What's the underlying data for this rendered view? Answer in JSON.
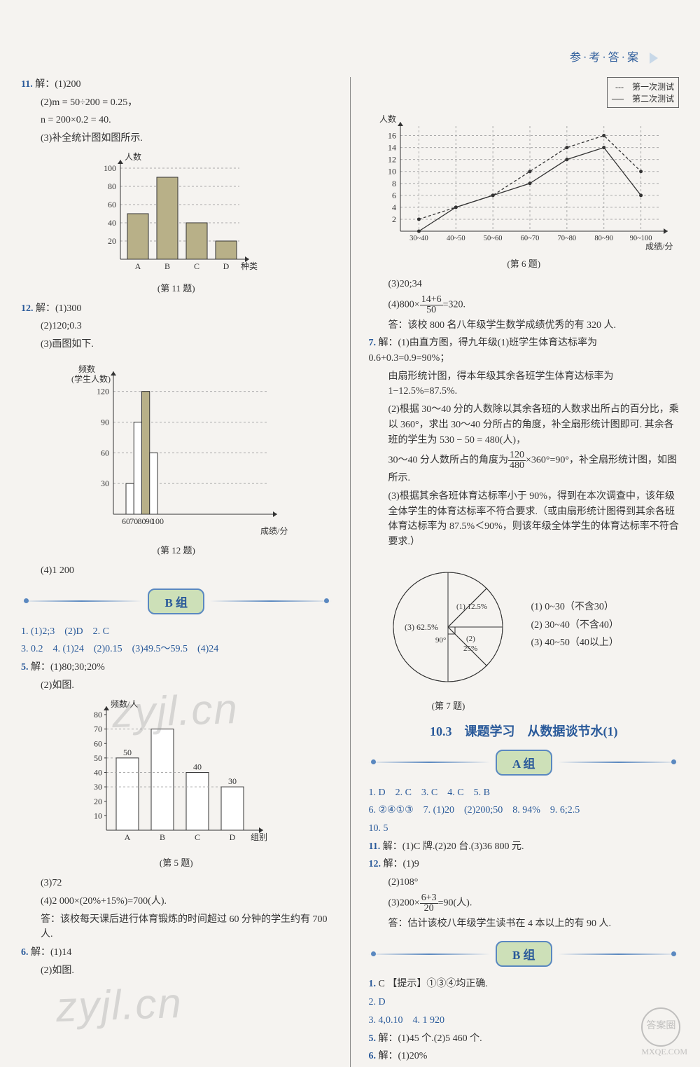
{
  "header": {
    "title": "参·考·答·案"
  },
  "left": {
    "q11": {
      "num": "11.",
      "line1": "解：(1)200",
      "line2": "(2)m = 50÷200 = 0.25，",
      "line3": "n = 200×0.2 = 40.",
      "line4": "(3)补全统计图如图所示.",
      "chart": {
        "ylabel": "人数",
        "xlabel": "种类",
        "categories": [
          "A",
          "B",
          "C",
          "D"
        ],
        "values": [
          50,
          90,
          40,
          20
        ],
        "yticks": [
          20,
          40,
          60,
          80,
          100
        ],
        "ylim": [
          0,
          100
        ],
        "bar_color": "#b8b088",
        "grid_color": "#aaa"
      },
      "caption": "(第 11 题)"
    },
    "q12": {
      "num": "12.",
      "line1": "解：(1)300",
      "line2": "(2)120;0.3",
      "line3": "(3)画图如下.",
      "chart": {
        "ylabel_top": "频数",
        "ylabel_bottom": "(学生人数)",
        "xlabel": "成绩/分",
        "xticks": [
          60,
          70,
          80,
          90,
          100
        ],
        "yticks": [
          30,
          60,
          90,
          120
        ],
        "ylim": [
          0,
          130
        ],
        "bars": [
          {
            "x0": 60,
            "x1": 70,
            "h": 30,
            "fill": "#fff"
          },
          {
            "x0": 70,
            "x1": 80,
            "h": 90,
            "fill": "#fff"
          },
          {
            "x0": 80,
            "x1": 90,
            "h": 120,
            "fill": "#b8b088"
          },
          {
            "x0": 90,
            "x1": 100,
            "h": 60,
            "fill": "#fff"
          }
        ],
        "grid_color": "#aaa"
      },
      "caption": "(第 12 题)",
      "line4": "(4)1 200"
    },
    "groupB_label": "B 组",
    "bq1": "1. (1)2;3　(2)D　2. C",
    "bq3": "3. 0.2　4. (1)24　(2)0.15　(3)49.5～59.5　(4)24",
    "bq5": {
      "num": "5.",
      "line1": "解：(1)80;30;20%",
      "line2": "(2)如图.",
      "chart": {
        "ylabel": "频数/人",
        "xlabel": "组别",
        "categories": [
          "A",
          "B",
          "C",
          "D"
        ],
        "values": [
          50,
          70,
          40,
          30
        ],
        "value_labels": [
          "50",
          "",
          "40",
          "30"
        ],
        "yticks": [
          10,
          20,
          30,
          40,
          50,
          60,
          70,
          80
        ],
        "ylim": [
          0,
          80
        ],
        "bar_color": "#fff",
        "grid_color": "#aaa"
      },
      "caption": "(第 5 题)",
      "line3": "(3)72",
      "line4": "(4)2 000×(20%+15%)=700(人).",
      "line5": "答：该校每天课后进行体育锻炼的时间超过 60 分钟的学生约有 700 人."
    },
    "bq6": {
      "num": "6.",
      "line1": "解：(1)14",
      "line2": "(2)如图."
    }
  },
  "right": {
    "q6chart": {
      "legend": {
        "a": "第一次测试",
        "b": "第二次测试"
      },
      "ylabel": "人数",
      "xlabel": "成绩/分",
      "yticks": [
        2,
        4,
        6,
        8,
        10,
        12,
        14,
        16
      ],
      "ylim": [
        0,
        17
      ],
      "xcats": [
        "30~40",
        "40~50",
        "50~60",
        "60~70",
        "70~80",
        "80~90",
        "90~100"
      ],
      "series1": [
        2,
        4,
        6,
        10,
        14,
        16,
        10
      ],
      "series2": [
        0,
        4,
        6,
        8,
        12,
        14,
        6
      ],
      "color1": "#333",
      "color2": "#333",
      "grid_color": "#aaa",
      "caption": "(第 6 题)",
      "line_a": "(3)20;34",
      "line_b": "(4)800×(14+6)/50=320.",
      "line_b_text": "(4)800×",
      "line_b_frac_top": "14+6",
      "line_b_frac_bot": "50",
      "line_b_tail": "=320.",
      "line_c": "答：该校 800 名八年级学生数学成绩优秀的有 320 人."
    },
    "q7": {
      "num": "7.",
      "p1": "解：(1)由直方图，得九年级(1)班学生体育达标率为 0.6+0.3=0.9=90%；",
      "p2": "由扇形统计图，得本年级其余各班学生体育达标率为 1−12.5%=87.5%.",
      "p3": "(2)根据 30～40 分的人数除以其余各班的人数求出所占的百分比，乘以 360°，求出 30～40 分所占的角度，补全扇形统计图即可. 其余各班的学生为 530 − 50 = 480(人)，",
      "p4_a": "30～40 分人数所占的角度为",
      "p4_frac_top": "120",
      "p4_frac_bot": "480",
      "p4_b": "×360°=90°，补全扇形统计图，如图所示.",
      "p5": "(3)根据其余各班体育达标率小于 90%，得到在本次调查中，该年级全体学生的体育达标率不符合要求.（或由扇形统计图得到其余各班体育达标率为 87.5%＜90%，则该年级全体学生的体育达标率不符合要求.）",
      "pie": {
        "labels": {
          "seg3": "(3) 62.5%",
          "seg1": "(1) 12.5%",
          "seg2_top": "(2)",
          "seg2_bot": "25%",
          "angle": "90°"
        },
        "legend": [
          "(1) 0~30（不含30）",
          "(2) 30~40（不含40）",
          "(3) 40~50（40以上）"
        ],
        "caption": "(第 7 题)"
      }
    },
    "sec103": {
      "title": "10.3　课题学习　从数据谈节水(1)",
      "groupA_label": "A 组",
      "a_line1": "1. D　2. C　3. C　4. C　5. B",
      "a_line2": "6. ②④①③　7. (1)20　(2)200;50　8. 94%　9. 6;2.5",
      "a_line3": "10. 5",
      "a_q11": "11. 解：(1)C 牌.(2)20 台.(3)36 800 元.",
      "a_q12_n": "12.",
      "a_q12_1": "解：(1)9",
      "a_q12_2": "(2)108°",
      "a_q12_3a": "(3)200×",
      "a_q12_frac_top": "6+3",
      "a_q12_frac_bot": "20",
      "a_q12_3b": "=90(人).",
      "a_q12_4": "答：估计该校八年级学生读书在 4 本以上的有 90 人.",
      "groupB_label": "B 组",
      "b_line1": "1. C 【提示】①③④均正确.",
      "b_line2": "2. D",
      "b_line3": "3. 4,0.10　4. 1 920",
      "b_line4": "5. 解：(1)45 个.(2)5 460 个.",
      "b_line5": "6. 解：(1)20%"
    }
  },
  "corner": {
    "top": "答案圈",
    "bottom": "MXQE.COM"
  }
}
